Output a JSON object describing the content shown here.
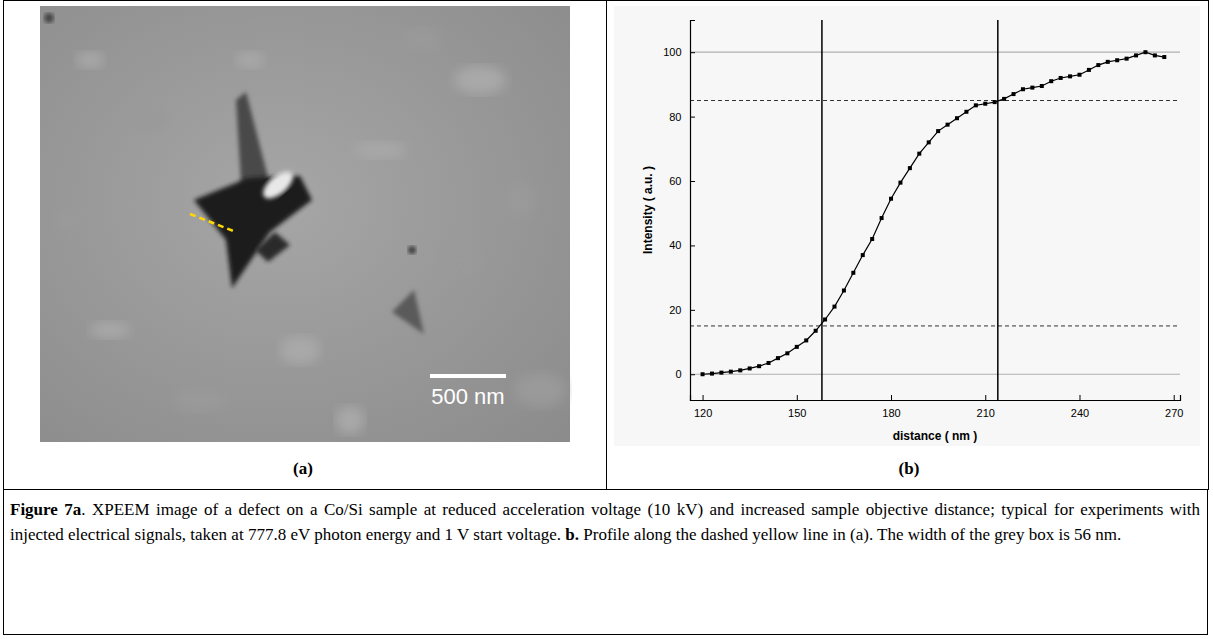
{
  "chart_data": {
    "type": "line",
    "x_label": "distance ( nm )",
    "y_label": "Intensity ( a.u. )",
    "x": [
      120,
      123,
      126,
      129,
      132,
      135,
      138,
      141,
      144,
      147,
      150,
      153,
      156,
      159,
      162,
      165,
      168,
      171,
      174,
      177,
      180,
      183,
      186,
      189,
      192,
      195,
      198,
      201,
      204,
      207,
      210,
      213,
      216,
      219,
      222,
      225,
      228,
      231,
      234,
      237,
      240,
      243,
      246,
      249,
      252,
      255,
      258,
      261,
      264,
      267
    ],
    "values": [
      0,
      0.2,
      0.5,
      0.8,
      1.2,
      1.8,
      2.5,
      3.5,
      5,
      6.5,
      8.5,
      10.5,
      13.5,
      17,
      21,
      26,
      31.5,
      37,
      42,
      48.5,
      54.5,
      59.5,
      64,
      68.5,
      72,
      75.5,
      77.5,
      79.5,
      81.5,
      83.5,
      84,
      84.5,
      85.5,
      87,
      88.5,
      89,
      89.5,
      91,
      92,
      92.5,
      93,
      94.5,
      96,
      97,
      97.5,
      98,
      99,
      100,
      99,
      98.5
    ],
    "color": "#000000",
    "marker": "square",
    "line_style": "solid",
    "grid": false,
    "xlim": [
      116,
      272
    ],
    "ylim": [
      -8,
      110
    ],
    "xticks": [
      120,
      150,
      180,
      210,
      240,
      270
    ],
    "yticks": [
      0,
      20,
      40,
      60,
      80,
      100
    ],
    "reference_lines": [
      0,
      100
    ],
    "threshold_lines": [
      15,
      85
    ],
    "edge_lines": [
      158,
      214
    ]
  },
  "figure": {
    "panels": [
      {
        "label": "(a)",
        "scale_bar": "500 nm"
      },
      {
        "label": "(b)"
      }
    ],
    "caption": [
      {
        "text": "Figure 7a",
        "bold": true
      },
      {
        "text": ". XPEEM image of a defect on a Co/Si sample at reduced acceleration voltage (10 kV) and increased sample objective distance; typical for experiments with injected electrical signals, taken at 777.8 eV photon energy and 1 V start voltage. ",
        "bold": false
      },
      {
        "text": "b.",
        "bold": true
      },
      {
        "text": " Profile along the dashed yellow line in (a). The width of the grey box is 56 nm.",
        "bold": false
      }
    ]
  }
}
